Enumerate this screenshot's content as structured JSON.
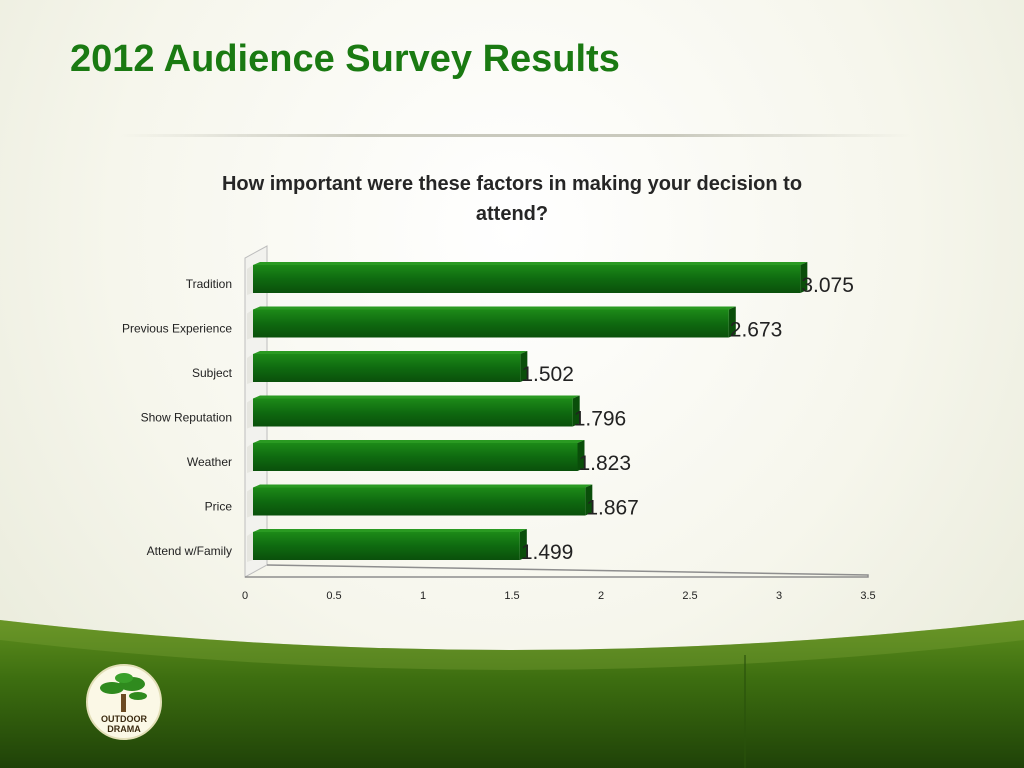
{
  "slide": {
    "title": "2012 Audience Survey Results",
    "logo": {
      "text_line1": "OUTDOOR",
      "text_line2": "DRAMA",
      "icon": "bonsai-tree-icon"
    }
  },
  "colors": {
    "title": "#1a7a12",
    "bar_front": "#0f6a10",
    "bar_top": "#2a9a22",
    "bar_side": "#0a4e0a",
    "footer_green": "#3f7a12"
  },
  "chart_data": {
    "type": "bar",
    "orientation": "horizontal",
    "title_lines": [
      "How important were these factors in making your decision to",
      "attend?"
    ],
    "categories": [
      "Tradition",
      "Previous Experience",
      "Subject",
      "Show Reputation",
      "Weather",
      "Price",
      "Attend w/Family"
    ],
    "values": [
      3.075,
      2.673,
      1.502,
      1.796,
      1.823,
      1.867,
      1.499
    ],
    "data_labels": [
      "3.075",
      "2.673",
      "1.502",
      "1.796",
      "1.823",
      "1.867",
      "1.499"
    ],
    "xlim": [
      0,
      3.5
    ],
    "xticks": [
      "0",
      "0.5",
      "1",
      "1.5",
      "2",
      "2.5",
      "3",
      "3.5"
    ],
    "xlabel": "",
    "ylabel": "",
    "grid": false,
    "legend": "none"
  }
}
